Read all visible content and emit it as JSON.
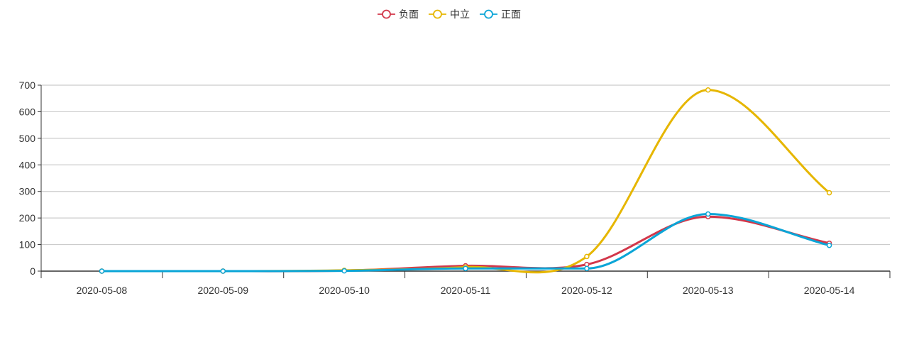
{
  "chart_data": {
    "type": "line",
    "smooth": true,
    "categories": [
      "2020-05-08",
      "2020-05-09",
      "2020-05-10",
      "2020-05-11",
      "2020-05-12",
      "2020-05-13",
      "2020-05-14"
    ],
    "series": [
      {
        "name": "负面",
        "color": "#d2374a",
        "values": [
          0,
          0,
          2,
          20,
          25,
          205,
          105
        ]
      },
      {
        "name": "中立",
        "color": "#e6b600",
        "values": [
          0,
          0,
          3,
          15,
          55,
          682,
          295
        ]
      },
      {
        "name": "正面",
        "color": "#0aa5d7",
        "values": [
          0,
          0,
          1,
          10,
          10,
          215,
          97
        ]
      }
    ],
    "y_ticks": [
      0,
      100,
      200,
      300,
      400,
      500,
      600,
      700
    ],
    "ylim": [
      0,
      700
    ],
    "grid": true,
    "legend_position": "top-center"
  }
}
